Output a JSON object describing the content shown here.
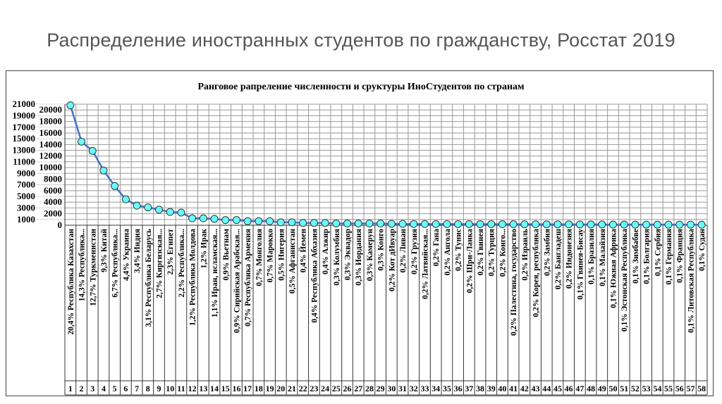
{
  "slide": {
    "title": "Распределение иностранных студентов по гражданству, Росстат 2019"
  },
  "chart_data": {
    "type": "line",
    "title": "Ранговое рапреление численности и сруктуры ИноСтудентов по странам",
    "xlabel": "",
    "ylabel": "",
    "ylim": [
      0,
      21000
    ],
    "yticks": [
      0,
      1000,
      2000,
      3000,
      4000,
      5000,
      6000,
      7000,
      8000,
      9000,
      10000,
      11000,
      12000,
      13000,
      14000,
      15000,
      16000,
      17000,
      18000,
      19000,
      20000,
      21000
    ],
    "grid": true,
    "colors": {
      "line": "#4472c4",
      "marker": "#66ffff",
      "grid": "#999999"
    },
    "categories": [
      "20,4% Республика Казахстан",
      "14,3% Республика...",
      "12,7% Туркменистан",
      "9,3% Китай",
      "6,7% Республика...",
      "4,4% Украина",
      "3,4% Индия",
      "3,1% Республика Беларусь",
      "2,7% Киргизская...",
      "2,3% Египет",
      "2,2% Республика...",
      "1,2% Республика Молдова",
      "1,2% Ирак",
      "1,1% Иран, исламская...",
      "0,9% Вьетнам",
      "0,9% Сирийская Арабская...",
      "0,7% Республика Армения",
      "0,7% Монголия",
      "0,7% Марокко",
      "0,5% Нигерия",
      "0,5% Афганистан",
      "0,4% Йемен",
      "0,4% Республика Абхазия",
      "0,4% Алжир",
      "0,3% Колумбия",
      "0,3% Эквадор",
      "0,3% Иордания",
      "0,3% Камерун",
      "0,3% Конго",
      "0,2% Кот дИвуар",
      "0,2% Ливан",
      "0,2% Грузия",
      "0,2% Латвийская...",
      "0,2% Гана",
      "0,2% Ангола",
      "0,2% Тунис",
      "0,2% Шри-Ланка",
      "0,2% Гвинея",
      "0,2% Турция",
      "0,2% Конго...",
      "0,2% Палестина, государство",
      "0,2% Израиль",
      "0,2% Корея, республика",
      "0,2% Замбия",
      "0,2% Бангладеш",
      "0,2% Индонезия",
      "0,1% Гвинея-Бисау",
      "0,1% Бразилия",
      "0,1% Малайзия",
      "0,1% Южная Африка",
      "0,1% Эстонская Республика",
      "0,1% Зимбабве",
      "0,1% Болгария",
      "0,1% Сербия",
      "0,1% Германия",
      "0,1% Франция",
      "0,1% Литовская Республика",
      "0,1% Судан"
    ],
    "ranks": [
      "1",
      "2",
      "3",
      "4",
      "5",
      "6",
      "7",
      "8",
      "9",
      "10",
      "11",
      "12",
      "13",
      "14",
      "15",
      "16",
      "17",
      "18",
      "19",
      "20",
      "21",
      "22",
      "23",
      "24",
      "25",
      "26",
      "27",
      "28",
      "29",
      "30",
      "31",
      "32",
      "33",
      "34",
      "35",
      "36",
      "37",
      "38",
      "39",
      "40",
      "41",
      "42",
      "43",
      "44",
      "45",
      "46",
      "47",
      "48",
      "49",
      "50",
      "51",
      "52",
      "53",
      "54",
      "55",
      "56",
      "57",
      "58"
    ],
    "values": [
      20800,
      14500,
      12900,
      9500,
      6800,
      4500,
      3400,
      3100,
      2700,
      2300,
      2200,
      1200,
      1200,
      1100,
      900,
      900,
      700,
      700,
      700,
      500,
      500,
      400,
      400,
      400,
      300,
      300,
      300,
      300,
      300,
      250,
      230,
      220,
      210,
      200,
      200,
      200,
      200,
      190,
      190,
      180,
      180,
      170,
      170,
      160,
      160,
      150,
      140,
      130,
      130,
      120,
      120,
      110,
      110,
      100,
      100,
      100,
      100,
      90
    ]
  }
}
